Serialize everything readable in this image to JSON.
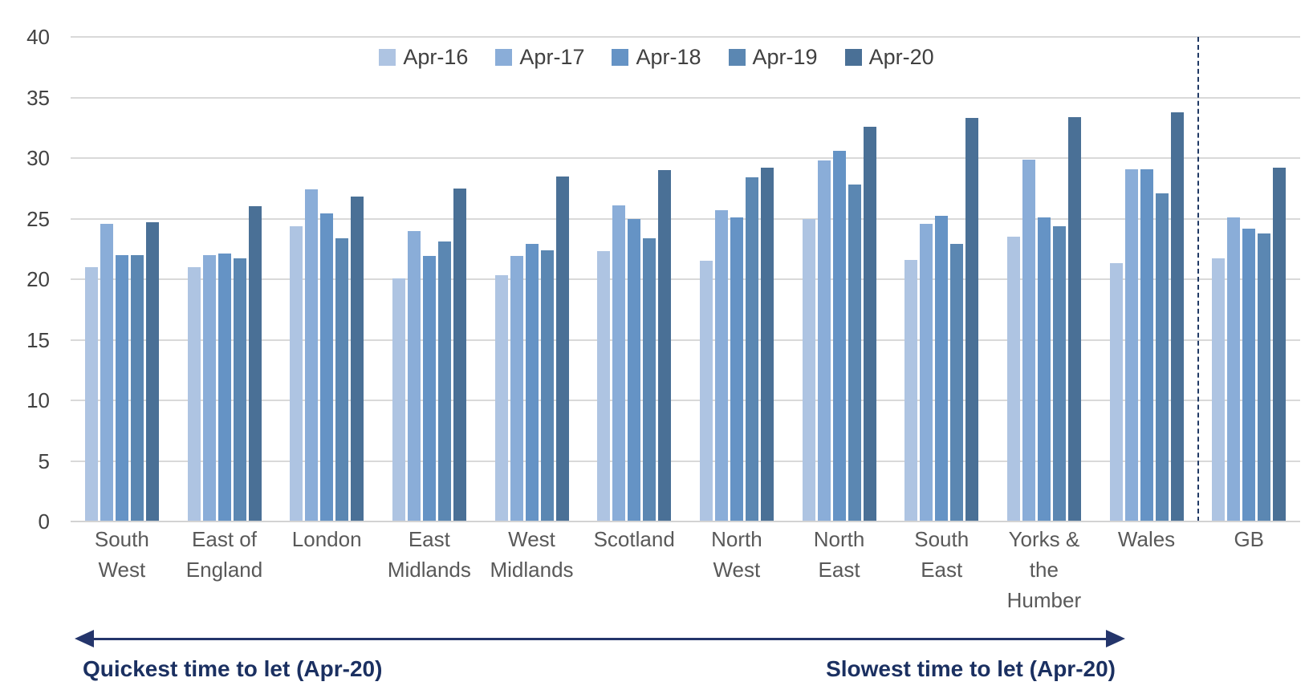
{
  "chart_data": {
    "type": "bar",
    "title": "",
    "xlabel": "",
    "ylabel": "",
    "ylim": [
      0,
      40
    ],
    "yticks": [
      40,
      35,
      30,
      25,
      20,
      15,
      10,
      5,
      0
    ],
    "grid": "horizontal",
    "legend_position": "top-center",
    "categories": [
      {
        "label": "South West",
        "lines": "South\nWest"
      },
      {
        "label": "East of England",
        "lines": "East of\nEngland"
      },
      {
        "label": "London",
        "lines": "London"
      },
      {
        "label": "East Midlands",
        "lines": "East\nMidlands"
      },
      {
        "label": "West Midlands",
        "lines": "West\nMidlands"
      },
      {
        "label": "Scotland",
        "lines": "Scotland"
      },
      {
        "label": "North West",
        "lines": "North\nWest"
      },
      {
        "label": "North East",
        "lines": "North\nEast"
      },
      {
        "label": "South East",
        "lines": "South\nEast"
      },
      {
        "label": "Yorks & the Humber",
        "lines": "Yorks &\nthe\nHumber"
      },
      {
        "label": "Wales",
        "lines": "Wales"
      },
      {
        "label": "GB",
        "lines": "GB"
      }
    ],
    "series": [
      {
        "name": "Apr-16",
        "color": "#aec4e2",
        "values": [
          21.0,
          21.0,
          24.4,
          20.1,
          20.3,
          22.3,
          21.5,
          25.0,
          21.6,
          23.5,
          21.3,
          21.7
        ]
      },
      {
        "name": "Apr-17",
        "color": "#8aadd8",
        "values": [
          24.6,
          22.0,
          27.4,
          24.0,
          21.9,
          26.1,
          25.7,
          29.8,
          24.6,
          29.9,
          29.1,
          25.1
        ]
      },
      {
        "name": "Apr-18",
        "color": "#6593c5",
        "values": [
          22.0,
          22.1,
          25.4,
          21.9,
          22.9,
          25.0,
          25.1,
          30.6,
          25.2,
          25.1,
          29.1,
          24.2
        ]
      },
      {
        "name": "Apr-19",
        "color": "#5b87b2",
        "values": [
          22.0,
          21.7,
          23.4,
          23.1,
          22.4,
          23.4,
          28.4,
          27.8,
          22.9,
          24.4,
          27.1,
          23.8
        ]
      },
      {
        "name": "Apr-20",
        "color": "#4a7096",
        "values": [
          24.7,
          26.0,
          26.8,
          27.5,
          28.5,
          29.0,
          29.2,
          32.6,
          33.3,
          33.4,
          33.8,
          29.2
        ]
      }
    ],
    "separator": {
      "after_category": "Wales",
      "style": "dashed",
      "color": "#1f3864"
    },
    "annotations": {
      "arrow_color": "#24356b",
      "left_text": "Quickest time to let (Apr-20)",
      "right_text": "Slowest time to let (Apr-20)"
    }
  }
}
